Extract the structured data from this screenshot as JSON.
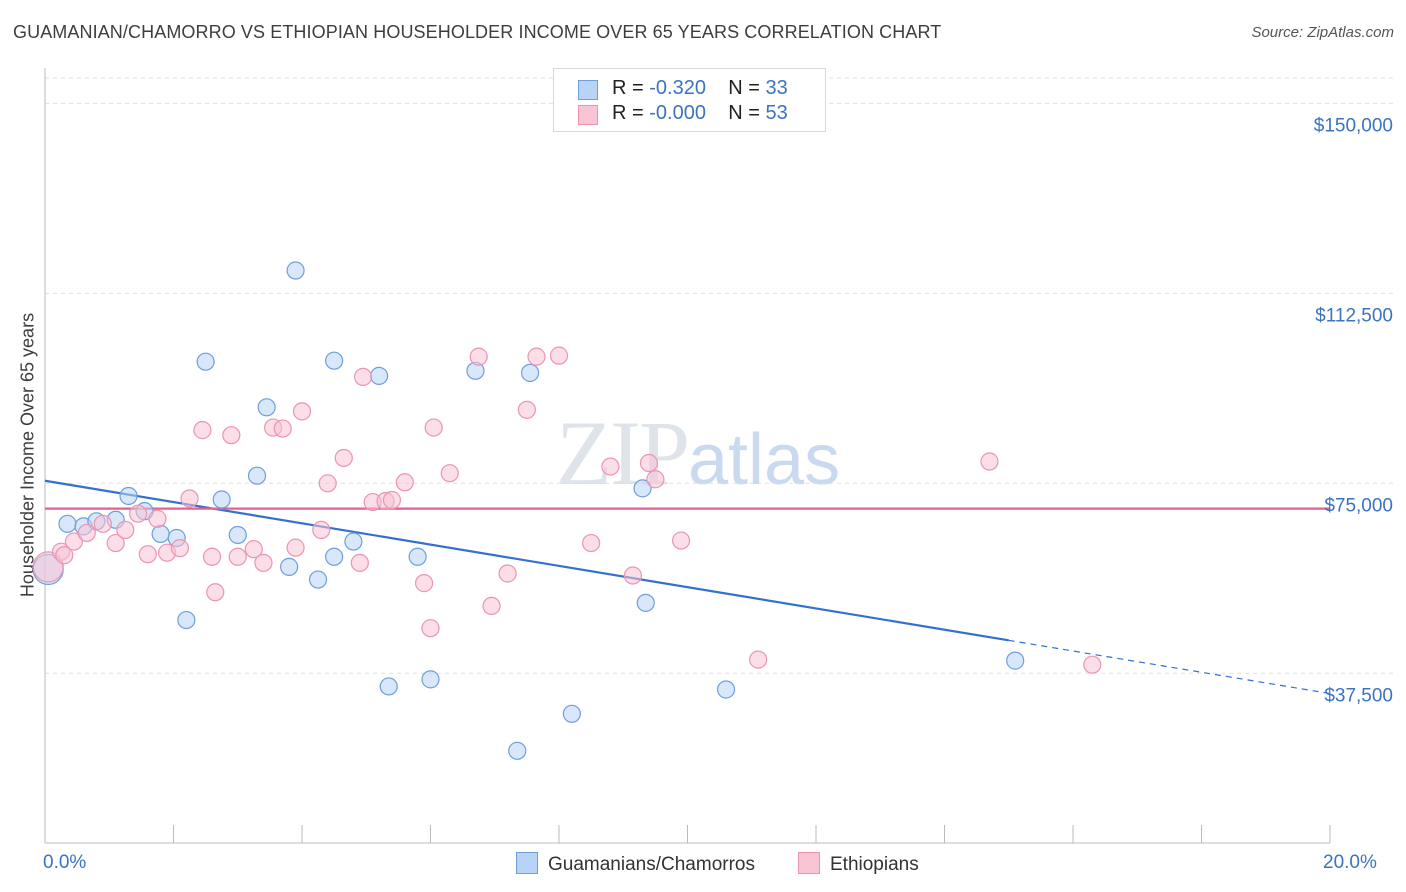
{
  "title": "GUAMANIAN/CHAMORRO VS ETHIOPIAN HOUSEHOLDER INCOME OVER 65 YEARS CORRELATION CHART",
  "source": "Source: ZipAtlas.com",
  "watermark": {
    "zip": "ZIP",
    "atlas": "atlas"
  },
  "legend": {
    "rows": [
      {
        "r_label": "R = ",
        "r_value": "-0.320",
        "n_label": "N = ",
        "n_value": "33"
      },
      {
        "r_label": "R = ",
        "r_value": "-0.000",
        "n_label": "N = ",
        "n_value": "53"
      }
    ]
  },
  "bottom_legend": {
    "blue": "Guamanians/Chamorros",
    "pink": "Ethiopians"
  },
  "x_axis": {
    "min_label": "0.0%",
    "max_label": "20.0%"
  },
  "colors": {
    "blue": "#3470d0",
    "blue_fill": "#b8d3f5",
    "blue_stroke": "#6e9edc",
    "pink": "#e6608c",
    "pink_fill": "#f8c3d3",
    "pink_stroke": "#ec94b1",
    "tick_text": "#3b73c4",
    "grid": "#e0e0e0"
  },
  "chart_data": {
    "type": "scatter",
    "title": "GUAMANIAN/CHAMORRO VS ETHIOPIAN HOUSEHOLDER INCOME OVER 65 YEARS CORRELATION CHART",
    "xlabel": "",
    "ylabel": "Householder Income Over 65 years",
    "xlim": [
      0,
      20
    ],
    "ylim": [
      4000,
      155000
    ],
    "y_ticks": [
      {
        "value": 150000,
        "label": "$150,000"
      },
      {
        "value": 112500,
        "label": "$112,500"
      },
      {
        "value": 75000,
        "label": "$75,000"
      },
      {
        "value": 37500,
        "label": "$37,500"
      }
    ],
    "series": [
      {
        "name": "Guamanians/Chamorros",
        "color": "blue",
        "trend": {
          "x0": 0,
          "y0": 75500,
          "x1": 15.0,
          "y1": 44000,
          "dash_to_x": 20,
          "dash_to_y": 33500
        },
        "points": [
          {
            "x": 0.05,
            "y": 58000,
            "size": "large"
          },
          {
            "x": 0.35,
            "y": 67000
          },
          {
            "x": 0.6,
            "y": 66500
          },
          {
            "x": 0.8,
            "y": 67500
          },
          {
            "x": 1.1,
            "y": 67800
          },
          {
            "x": 1.3,
            "y": 72500
          },
          {
            "x": 1.55,
            "y": 69500
          },
          {
            "x": 1.8,
            "y": 65000
          },
          {
            "x": 2.05,
            "y": 64200
          },
          {
            "x": 2.2,
            "y": 48000
          },
          {
            "x": 2.5,
            "y": 99000
          },
          {
            "x": 2.75,
            "y": 71800
          },
          {
            "x": 3.0,
            "y": 64800
          },
          {
            "x": 3.3,
            "y": 76500
          },
          {
            "x": 3.45,
            "y": 90000
          },
          {
            "x": 3.8,
            "y": 58500
          },
          {
            "x": 3.9,
            "y": 117000
          },
          {
            "x": 4.25,
            "y": 56000
          },
          {
            "x": 4.5,
            "y": 99200
          },
          {
            "x": 4.5,
            "y": 60500
          },
          {
            "x": 4.8,
            "y": 63500
          },
          {
            "x": 5.2,
            "y": 96200
          },
          {
            "x": 5.35,
            "y": 34900
          },
          {
            "x": 5.8,
            "y": 60500
          },
          {
            "x": 6.0,
            "y": 36300
          },
          {
            "x": 6.7,
            "y": 97200
          },
          {
            "x": 7.35,
            "y": 22200
          },
          {
            "x": 7.55,
            "y": 96800
          },
          {
            "x": 8.2,
            "y": 29500
          },
          {
            "x": 9.3,
            "y": 74000
          },
          {
            "x": 9.35,
            "y": 51400
          },
          {
            "x": 10.6,
            "y": 34300
          },
          {
            "x": 15.1,
            "y": 40000
          }
        ]
      },
      {
        "name": "Ethiopians",
        "color": "pink",
        "trend": {
          "x0": 0,
          "y0": 70000,
          "x1": 20,
          "y1": 70000
        },
        "points": [
          {
            "x": 0.05,
            "y": 58500,
            "size": "large"
          },
          {
            "x": 0.25,
            "y": 61500
          },
          {
            "x": 0.45,
            "y": 63500
          },
          {
            "x": 0.65,
            "y": 65200
          },
          {
            "x": 0.9,
            "y": 67000
          },
          {
            "x": 1.1,
            "y": 63200
          },
          {
            "x": 1.25,
            "y": 65800
          },
          {
            "x": 1.45,
            "y": 69000
          },
          {
            "x": 1.6,
            "y": 61000
          },
          {
            "x": 1.75,
            "y": 68000
          },
          {
            "x": 1.9,
            "y": 61300
          },
          {
            "x": 2.1,
            "y": 62200
          },
          {
            "x": 2.25,
            "y": 72000
          },
          {
            "x": 2.45,
            "y": 85500
          },
          {
            "x": 2.6,
            "y": 60500
          },
          {
            "x": 2.65,
            "y": 53500
          },
          {
            "x": 2.9,
            "y": 84500
          },
          {
            "x": 3.0,
            "y": 60500
          },
          {
            "x": 3.25,
            "y": 62000
          },
          {
            "x": 3.4,
            "y": 59300
          },
          {
            "x": 3.55,
            "y": 86000
          },
          {
            "x": 3.7,
            "y": 85800
          },
          {
            "x": 3.9,
            "y": 62300
          },
          {
            "x": 4.0,
            "y": 89200
          },
          {
            "x": 4.3,
            "y": 65800
          },
          {
            "x": 4.4,
            "y": 75000
          },
          {
            "x": 4.65,
            "y": 80000
          },
          {
            "x": 4.9,
            "y": 59300
          },
          {
            "x": 4.95,
            "y": 96000
          },
          {
            "x": 5.1,
            "y": 71300
          },
          {
            "x": 5.3,
            "y": 71500
          },
          {
            "x": 5.4,
            "y": 71700
          },
          {
            "x": 5.6,
            "y": 75200
          },
          {
            "x": 5.9,
            "y": 55300
          },
          {
            "x": 6.0,
            "y": 46400
          },
          {
            "x": 6.05,
            "y": 86000
          },
          {
            "x": 6.3,
            "y": 77000
          },
          {
            "x": 6.75,
            "y": 100000
          },
          {
            "x": 6.95,
            "y": 50800
          },
          {
            "x": 7.2,
            "y": 57200
          },
          {
            "x": 7.5,
            "y": 89500
          },
          {
            "x": 7.65,
            "y": 100000
          },
          {
            "x": 8.0,
            "y": 100200
          },
          {
            "x": 8.8,
            "y": 78300
          },
          {
            "x": 9.15,
            "y": 56800
          },
          {
            "x": 9.4,
            "y": 79000
          },
          {
            "x": 9.5,
            "y": 75800
          },
          {
            "x": 9.9,
            "y": 63700
          },
          {
            "x": 11.1,
            "y": 40200
          },
          {
            "x": 14.7,
            "y": 79300
          },
          {
            "x": 16.3,
            "y": 39200
          },
          {
            "x": 8.5,
            "y": 63200
          },
          {
            "x": 0.3,
            "y": 60800
          }
        ]
      }
    ]
  }
}
